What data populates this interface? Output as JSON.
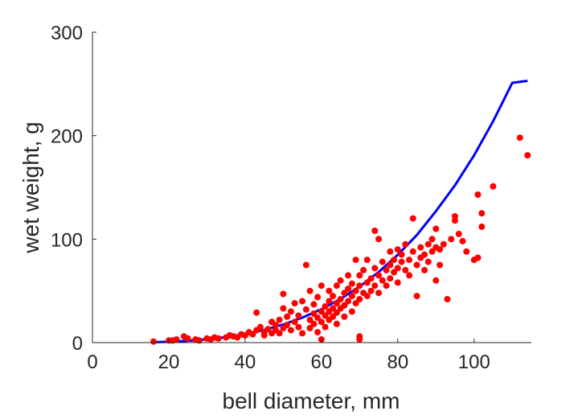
{
  "chart_data": {
    "type": "scatter",
    "xlabel": "bell diameter, mm",
    "ylabel": "wet weight, g",
    "xlim": [
      0,
      115
    ],
    "ylim": [
      0,
      300
    ],
    "xticks": [
      0,
      20,
      40,
      60,
      80,
      100
    ],
    "yticks": [
      0,
      100,
      200,
      300
    ],
    "grid": false,
    "box": false,
    "colors": {
      "points": "#ff0000",
      "fit": "#0000ff",
      "axes": "#262626"
    },
    "series": [
      {
        "type": "scatter",
        "points": [
          [
            16,
            1
          ],
          [
            20,
            2
          ],
          [
            21,
            2
          ],
          [
            22,
            3
          ],
          [
            24,
            6
          ],
          [
            25,
            4
          ],
          [
            27,
            3
          ],
          [
            28,
            2
          ],
          [
            30,
            4
          ],
          [
            31,
            3
          ],
          [
            32,
            5
          ],
          [
            33,
            4
          ],
          [
            35,
            5
          ],
          [
            36,
            7
          ],
          [
            37,
            6
          ],
          [
            38,
            5
          ],
          [
            39,
            8
          ],
          [
            40,
            7
          ],
          [
            41,
            10
          ],
          [
            42,
            8
          ],
          [
            43,
            12
          ],
          [
            43,
            29
          ],
          [
            44,
            15
          ],
          [
            45,
            10
          ],
          [
            45,
            7
          ],
          [
            46,
            13
          ],
          [
            47,
            20
          ],
          [
            47,
            9
          ],
          [
            48,
            17
          ],
          [
            48,
            12
          ],
          [
            49,
            9
          ],
          [
            49,
            22
          ],
          [
            50,
            14
          ],
          [
            50,
            33
          ],
          [
            50,
            47
          ],
          [
            51,
            25
          ],
          [
            51,
            17
          ],
          [
            52,
            12
          ],
          [
            52,
            30
          ],
          [
            53,
            20
          ],
          [
            53,
            38
          ],
          [
            54,
            15
          ],
          [
            54,
            26
          ],
          [
            55,
            9
          ],
          [
            55,
            40
          ],
          [
            56,
            75
          ],
          [
            56,
            32
          ],
          [
            57,
            22
          ],
          [
            57,
            14
          ],
          [
            57,
            50
          ],
          [
            58,
            28
          ],
          [
            58,
            18
          ],
          [
            58,
            37
          ],
          [
            59,
            24
          ],
          [
            59,
            10
          ],
          [
            59,
            44
          ],
          [
            60,
            30
          ],
          [
            60,
            20
          ],
          [
            60,
            55
          ],
          [
            60,
            3
          ],
          [
            61,
            35
          ],
          [
            61,
            26
          ],
          [
            61,
            15
          ],
          [
            62,
            40
          ],
          [
            62,
            30
          ],
          [
            62,
            50
          ],
          [
            62,
            22
          ],
          [
            63,
            33
          ],
          [
            63,
            45
          ],
          [
            63,
            25
          ],
          [
            64,
            38
          ],
          [
            64,
            55
          ],
          [
            64,
            29
          ],
          [
            64,
            18
          ],
          [
            65,
            42
          ],
          [
            65,
            60
          ],
          [
            65,
            33
          ],
          [
            66,
            48
          ],
          [
            66,
            36
          ],
          [
            66,
            25
          ],
          [
            67,
            52
          ],
          [
            67,
            40
          ],
          [
            67,
            65
          ],
          [
            68,
            45
          ],
          [
            68,
            57
          ],
          [
            68,
            30
          ],
          [
            69,
            50
          ],
          [
            69,
            80
          ],
          [
            69,
            38
          ],
          [
            70,
            55
          ],
          [
            70,
            42
          ],
          [
            70,
            65
          ],
          [
            70,
            3
          ],
          [
            70,
            6
          ],
          [
            71,
            48
          ],
          [
            71,
            70
          ],
          [
            72,
            58
          ],
          [
            72,
            45
          ],
          [
            72,
            80
          ],
          [
            73,
            62
          ],
          [
            73,
            50
          ],
          [
            74,
            55
          ],
          [
            74,
            72
          ],
          [
            74,
            108
          ],
          [
            75,
            65
          ],
          [
            75,
            48
          ],
          [
            75,
            100
          ],
          [
            76,
            60
          ],
          [
            76,
            78
          ],
          [
            77,
            70
          ],
          [
            77,
            55
          ],
          [
            78,
            75
          ],
          [
            78,
            62
          ],
          [
            78,
            88
          ],
          [
            79,
            68
          ],
          [
            79,
            80
          ],
          [
            80,
            72
          ],
          [
            80,
            90
          ],
          [
            80,
            58
          ],
          [
            81,
            78
          ],
          [
            81,
            85
          ],
          [
            82,
            70
          ],
          [
            82,
            95
          ],
          [
            83,
            80
          ],
          [
            83,
            65
          ],
          [
            84,
            88
          ],
          [
            84,
            120
          ],
          [
            85,
            75
          ],
          [
            85,
            45
          ],
          [
            86,
            92
          ],
          [
            86,
            82
          ],
          [
            87,
            85
          ],
          [
            87,
            70
          ],
          [
            88,
            95
          ],
          [
            88,
            78
          ],
          [
            89,
            100
          ],
          [
            89,
            88
          ],
          [
            90,
            110
          ],
          [
            90,
            92
          ],
          [
            90,
            60
          ],
          [
            91,
            90
          ],
          [
            91,
            75
          ],
          [
            92,
            95
          ],
          [
            93,
            42
          ],
          [
            94,
            100
          ],
          [
            95,
            118
          ],
          [
            95,
            122
          ],
          [
            96,
            105
          ],
          [
            97,
            98
          ],
          [
            98,
            88
          ],
          [
            100,
            80
          ],
          [
            101,
            143
          ],
          [
            101,
            82
          ],
          [
            102,
            125
          ],
          [
            102,
            112
          ],
          [
            105,
            151
          ],
          [
            112,
            198
          ],
          [
            114,
            181
          ]
        ]
      },
      {
        "type": "line",
        "x": [
          16,
          20,
          25,
          30,
          35,
          40,
          45,
          50,
          55,
          60,
          65,
          70,
          75,
          80,
          85,
          90,
          95,
          100,
          105,
          110,
          114
        ],
        "y": [
          0.4,
          0.8,
          1.7,
          3.1,
          5.2,
          8.2,
          12.3,
          17.5,
          24.1,
          32.3,
          42.2,
          54.1,
          68.2,
          84.8,
          104,
          127,
          152,
          181,
          214,
          251,
          253
        ]
      }
    ]
  }
}
